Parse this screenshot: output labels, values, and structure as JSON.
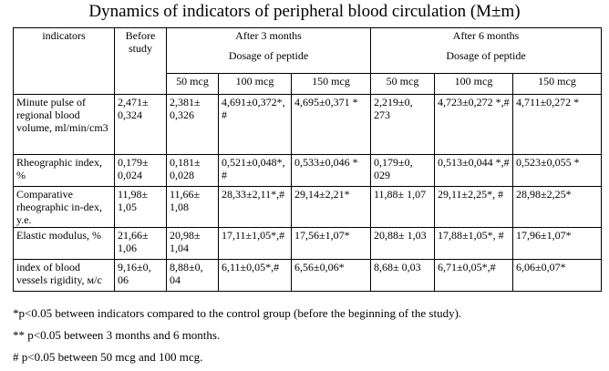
{
  "title": "Dynamics of indicators of peripheral blood circulation (M±m)",
  "table": {
    "header": {
      "indicators": "indicators",
      "before": "Before study",
      "after3": "After 3 months",
      "after6": "After 6 months",
      "dosage": "Dosage of peptide",
      "doses": [
        "50 mcg",
        "100 mcg",
        "150 mcg"
      ]
    },
    "rows": [
      {
        "name": "Minute pulse of regional blood volume, ml/min/cm3",
        "cells": [
          "2,471± 0,324",
          "2,381± 0,326",
          "4,691±0,372*, #",
          "4,695±0,371 *",
          "2,219±0, 273",
          "4,723±0,272 *,#",
          "4,711±0,272 *"
        ]
      },
      {
        "name": "Rheographic index, %",
        "cells": [
          "0,179± 0,024",
          "0,181± 0,028",
          "0,521±0,048*, #",
          "0,533±0,046 *",
          "0,179±0, 029",
          "0,513±0,044 *,#",
          "0,523±0,055 *"
        ]
      },
      {
        "name": "Comparative rheographic in-dex, y.e.",
        "cells": [
          "11,98± 1,05",
          "11,66± 1,08",
          "28,33±2,11*,#",
          "29,14±2,21*",
          "11,88± 1,07",
          "29,11±2,25*, #",
          "28,98±2,25*"
        ]
      },
      {
        "name": "Elastic modulus, %",
        "cells": [
          "21,66± 1,06",
          "20,98± 1,04",
          "17,11±1,05*,#",
          "17,56±1,07*",
          "20,88± 1,03",
          "17,88±1,05*, #",
          "17,96±1,07*"
        ]
      },
      {
        "name": "index of blood vessels rigidity, м/с",
        "cells": [
          "9,16±0, 06",
          "8,88±0, 04",
          "6,11±0,05*,#",
          "6,56±0,06*",
          "8,68± 0,03",
          "6,71±0,05*,#",
          "6,06±0,07*"
        ]
      }
    ]
  },
  "notes": [
    "*p<0.05 between indicators compared to the control group (before the beginning of the study).",
    "** p<0.05 between 3 months and 6 months.",
    "# p<0.05 between 50 mcg and 100 mcg."
  ]
}
